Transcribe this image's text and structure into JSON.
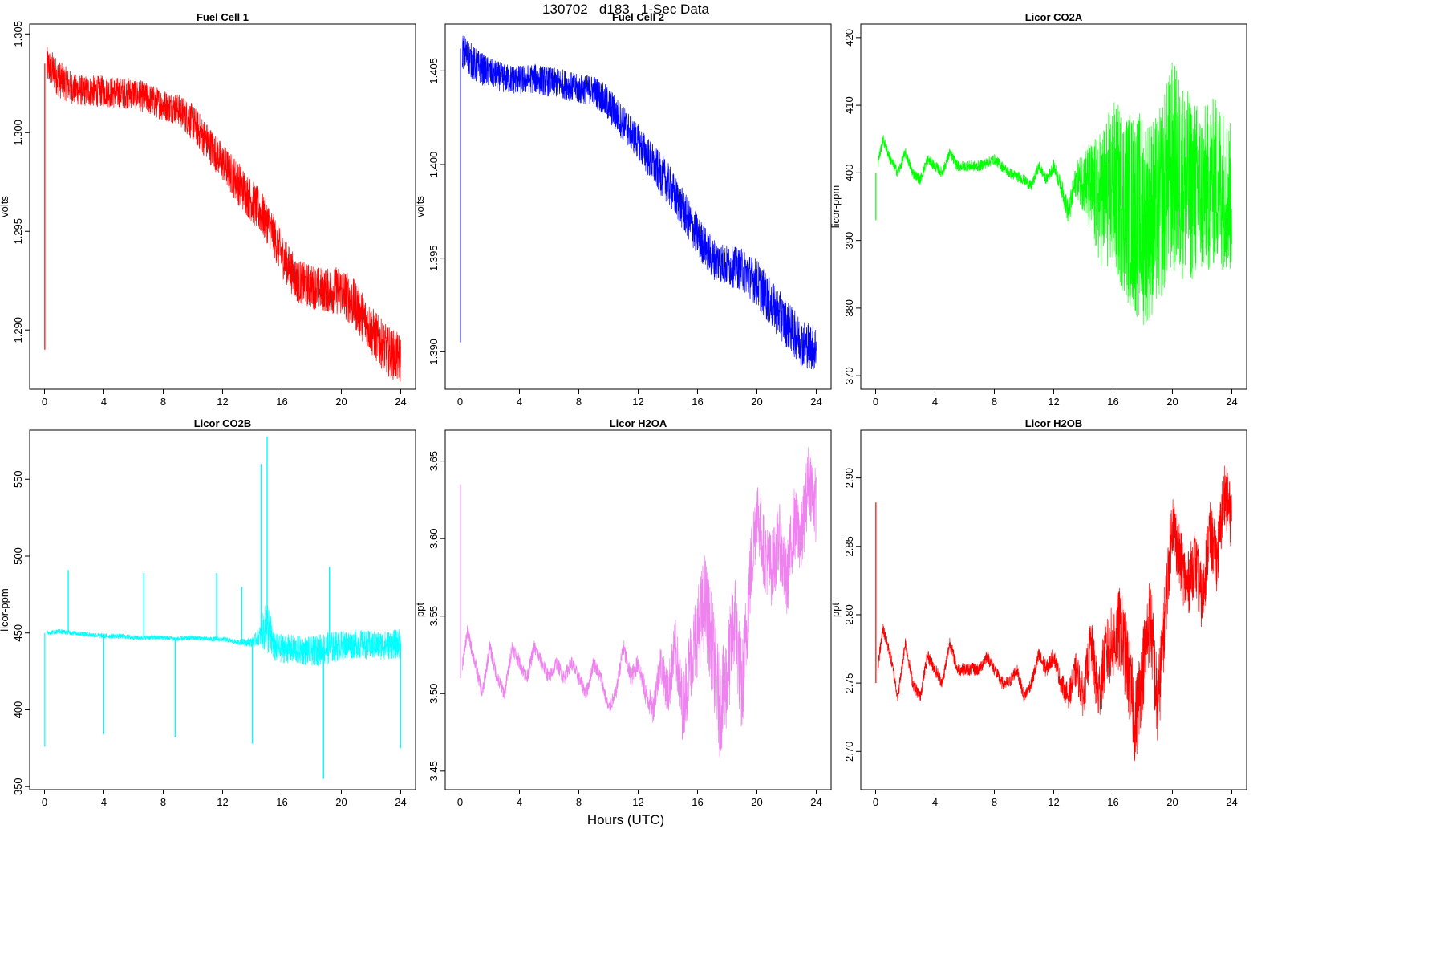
{
  "header": {
    "title": "130702   d183   1-Sec Data"
  },
  "xlabel": "Hours (UTC)",
  "chart_data": [
    {
      "type": "line",
      "title": "Fuel Cell 1",
      "ylabel": "volts",
      "color": "#ff0000",
      "xlim": [
        -1,
        25
      ],
      "ylim": [
        1.287,
        1.3055
      ],
      "xticks": [
        0,
        4,
        8,
        12,
        16,
        20,
        24
      ],
      "yticks": [
        1.29,
        1.295,
        1.3,
        1.305
      ],
      "ytick_labels": [
        "1.290",
        "1.295",
        "1.300",
        "1.305"
      ],
      "x": [
        0,
        0.5,
        1,
        2,
        3,
        4,
        5,
        6,
        7,
        8,
        9,
        10,
        11,
        12,
        13,
        14,
        15,
        16,
        17,
        18,
        19,
        20,
        21,
        22,
        23,
        24
      ],
      "y": [
        1.3035,
        1.3032,
        1.3027,
        1.3022,
        1.3021,
        1.3021,
        1.302,
        1.302,
        1.3017,
        1.3014,
        1.3012,
        1.3005,
        1.2995,
        1.2985,
        1.2975,
        1.2965,
        1.2955,
        1.2938,
        1.2925,
        1.2922,
        1.292,
        1.292,
        1.2912,
        1.29,
        1.289,
        1.2885
      ],
      "noise": [
        0.0006,
        0.0006,
        0.0006,
        0.0005,
        0.0005,
        0.0005,
        0.0005,
        0.0005,
        0.0005,
        0.0005,
        0.0005,
        0.0006,
        0.0006,
        0.0006,
        0.0007,
        0.0007,
        0.0007,
        0.0007,
        0.0007,
        0.0007,
        0.0007,
        0.0008,
        0.0008,
        0.0008,
        0.0008,
        0.0008
      ],
      "spike": {
        "x": 0.02,
        "y": 1.289
      }
    },
    {
      "type": "line",
      "title": "Fuel Cell 2",
      "ylabel": "volts",
      "color": "#0000ff",
      "xlim": [
        -1,
        25
      ],
      "ylim": [
        1.388,
        1.4075
      ],
      "xticks": [
        0,
        4,
        8,
        12,
        16,
        20,
        24
      ],
      "yticks": [
        1.39,
        1.395,
        1.4,
        1.405
      ],
      "ytick_labels": [
        "1.390",
        "1.395",
        "1.400",
        "1.405"
      ],
      "x": [
        0,
        0.5,
        1,
        2,
        3,
        4,
        5,
        6,
        7,
        8,
        9,
        10,
        11,
        12,
        13,
        14,
        15,
        16,
        17,
        18,
        19,
        20,
        21,
        22,
        23,
        24
      ],
      "y": [
        1.4062,
        1.4058,
        1.4053,
        1.4049,
        1.4046,
        1.4045,
        1.4046,
        1.4044,
        1.4043,
        1.404,
        1.404,
        1.4032,
        1.4022,
        1.4012,
        1.4,
        1.399,
        1.3976,
        1.3962,
        1.395,
        1.3946,
        1.3944,
        1.3937,
        1.3925,
        1.3915,
        1.3905,
        1.3902
      ],
      "noise": [
        0.0006,
        0.0006,
        0.0006,
        0.0005,
        0.0005,
        0.0005,
        0.0005,
        0.0005,
        0.0005,
        0.0005,
        0.0005,
        0.0006,
        0.0006,
        0.0006,
        0.0007,
        0.0007,
        0.0007,
        0.0007,
        0.0007,
        0.0007,
        0.0007,
        0.0008,
        0.0008,
        0.0008,
        0.0008,
        0.0008
      ],
      "spike": {
        "x": 0.02,
        "y": 1.3905
      }
    },
    {
      "type": "line",
      "title": "Licor CO2A",
      "ylabel": "licor-ppm",
      "color": "#00ff00",
      "xlim": [
        -1,
        25
      ],
      "ylim": [
        368,
        422
      ],
      "xticks": [
        0,
        4,
        8,
        12,
        16,
        20,
        24
      ],
      "yticks": [
        370,
        380,
        390,
        400,
        410,
        420
      ],
      "ytick_labels": [
        "370",
        "380",
        "390",
        "400",
        "410",
        "420"
      ],
      "x": [
        0,
        0.5,
        1,
        1.5,
        2,
        2.5,
        3,
        3.5,
        4,
        4.5,
        5,
        5.5,
        6,
        7,
        8,
        9,
        10,
        10.5,
        11,
        11.5,
        12,
        12.5,
        13,
        13.5,
        14,
        15,
        16,
        17,
        18,
        19,
        20,
        21,
        22,
        23,
        24
      ],
      "y": [
        400,
        405,
        402,
        400,
        403,
        400,
        399,
        402,
        401,
        400,
        403,
        401,
        401,
        401,
        402,
        400,
        399,
        398,
        401,
        399,
        401,
        398,
        394,
        399,
        399,
        396,
        398,
        395,
        393,
        394,
        401,
        398,
        397,
        399,
        396
      ],
      "noise": [
        0.5,
        0.5,
        0.5,
        0.5,
        0.5,
        0.5,
        0.5,
        0.5,
        0.5,
        0.5,
        0.5,
        0.5,
        0.5,
        0.5,
        0.5,
        0.5,
        0.5,
        0.5,
        0.5,
        0.5,
        0.6,
        0.8,
        1.2,
        1.5,
        3,
        6,
        8,
        9,
        10,
        9,
        10,
        9,
        8,
        8,
        7
      ],
      "spike": {
        "x": 0.02,
        "y": 393
      }
    },
    {
      "type": "line",
      "title": "Licor CO2B",
      "ylabel": "licor-ppm",
      "color": "#00ffff",
      "xlim": [
        -1,
        25
      ],
      "ylim": [
        348,
        582
      ],
      "xticks": [
        0,
        4,
        8,
        12,
        16,
        20,
        24
      ],
      "yticks": [
        350,
        400,
        450,
        500,
        550
      ],
      "ytick_labels": [
        "350",
        "400",
        "450",
        "500",
        "550"
      ],
      "x": [
        0,
        1,
        2,
        3,
        4,
        5,
        6,
        7,
        8,
        9,
        10,
        11,
        12,
        13,
        14,
        14.5,
        15,
        15.5,
        16,
        17,
        18,
        19,
        20,
        21,
        22,
        23,
        24
      ],
      "y": [
        450,
        451,
        450,
        449,
        448,
        448,
        447,
        447,
        447,
        446,
        447,
        446,
        446,
        444,
        444,
        448,
        455,
        440,
        440,
        439,
        438,
        440,
        442,
        443,
        442,
        442,
        443
      ],
      "noise": [
        1,
        1,
        1,
        1,
        1,
        1,
        1,
        1,
        1,
        1,
        1,
        1,
        1,
        1,
        2,
        4,
        12,
        6,
        6,
        6,
        6,
        7,
        6,
        6,
        6,
        6,
        6
      ],
      "spike": {
        "x": 0.02,
        "y": 376
      },
      "extra_spikes": [
        {
          "x": 4.0,
          "y": 384
        },
        {
          "x": 8.8,
          "y": 382
        },
        {
          "x": 14.0,
          "y": 378
        },
        {
          "x": 14.6,
          "y": 560
        },
        {
          "x": 15.0,
          "y": 578
        },
        {
          "x": 18.8,
          "y": 355
        },
        {
          "x": 19.2,
          "y": 493
        },
        {
          "x": 24.0,
          "y": 375
        },
        {
          "x": 1.6,
          "y": 491
        },
        {
          "x": 6.7,
          "y": 489
        },
        {
          "x": 11.6,
          "y": 489
        },
        {
          "x": 13.3,
          "y": 480
        }
      ]
    },
    {
      "type": "line",
      "title": "Licor H2OA",
      "ylabel": "ppt",
      "color": "#ee82ee",
      "xlim": [
        -1,
        25
      ],
      "ylim": [
        3.438,
        3.67
      ],
      "xticks": [
        0,
        4,
        8,
        12,
        16,
        20,
        24
      ],
      "yticks": [
        3.45,
        3.5,
        3.55,
        3.6,
        3.65
      ],
      "ytick_labels": [
        "3.45",
        "3.50",
        "3.55",
        "3.60",
        "3.65"
      ],
      "x": [
        0,
        0.5,
        1,
        1.5,
        2,
        2.5,
        3,
        3.5,
        4,
        4.5,
        5,
        5.5,
        6,
        6.5,
        7,
        7.5,
        8,
        8.5,
        9,
        9.5,
        10,
        10.5,
        11,
        11.5,
        12,
        12.5,
        13,
        13.5,
        14,
        14.5,
        15,
        15.5,
        16,
        16.5,
        17,
        17.5,
        18,
        18.5,
        19,
        19.5,
        20,
        20.5,
        21,
        21.5,
        22,
        22.5,
        23,
        23.5,
        24
      ],
      "y": [
        3.51,
        3.54,
        3.52,
        3.5,
        3.53,
        3.51,
        3.5,
        3.53,
        3.52,
        3.51,
        3.53,
        3.52,
        3.51,
        3.52,
        3.51,
        3.52,
        3.51,
        3.5,
        3.52,
        3.51,
        3.49,
        3.5,
        3.53,
        3.51,
        3.52,
        3.5,
        3.49,
        3.52,
        3.5,
        3.53,
        3.49,
        3.52,
        3.54,
        3.56,
        3.53,
        3.49,
        3.51,
        3.55,
        3.5,
        3.57,
        3.62,
        3.59,
        3.58,
        3.6,
        3.57,
        3.61,
        3.6,
        3.64,
        3.62
      ],
      "noise": [
        0.003,
        0.003,
        0.003,
        0.003,
        0.003,
        0.003,
        0.003,
        0.003,
        0.003,
        0.003,
        0.003,
        0.003,
        0.003,
        0.003,
        0.003,
        0.003,
        0.003,
        0.003,
        0.003,
        0.003,
        0.003,
        0.003,
        0.004,
        0.004,
        0.004,
        0.005,
        0.006,
        0.008,
        0.01,
        0.012,
        0.014,
        0.016,
        0.018,
        0.02,
        0.02,
        0.02,
        0.02,
        0.02,
        0.02,
        0.018,
        0.015,
        0.015,
        0.015,
        0.015,
        0.015,
        0.015,
        0.015,
        0.015,
        0.015
      ],
      "spike": {
        "x": 0.02,
        "y": 3.635
      }
    },
    {
      "type": "line",
      "title": "Licor H2OB",
      "ylabel": "ppt",
      "color": "#ff0000",
      "xlim": [
        -1,
        25
      ],
      "ylim": [
        2.672,
        2.935
      ],
      "xticks": [
        0,
        4,
        8,
        12,
        16,
        20,
        24
      ],
      "yticks": [
        2.7,
        2.75,
        2.8,
        2.85,
        2.9
      ],
      "ytick_labels": [
        "2.70",
        "2.75",
        "2.80",
        "2.85",
        "2.90"
      ],
      "x": [
        0,
        0.5,
        1,
        1.5,
        2,
        2.5,
        3,
        3.5,
        4,
        4.5,
        5,
        5.5,
        6,
        6.5,
        7,
        7.5,
        8,
        8.5,
        9,
        9.5,
        10,
        10.5,
        11,
        11.5,
        12,
        12.5,
        13,
        13.5,
        14,
        14.5,
        15,
        15.5,
        16,
        16.5,
        17,
        17.5,
        18,
        18.5,
        19,
        19.5,
        20,
        20.5,
        21,
        21.5,
        22,
        22.5,
        23,
        23.5,
        24
      ],
      "y": [
        2.75,
        2.79,
        2.77,
        2.74,
        2.78,
        2.75,
        2.74,
        2.77,
        2.76,
        2.75,
        2.78,
        2.76,
        2.76,
        2.76,
        2.76,
        2.77,
        2.76,
        2.75,
        2.75,
        2.76,
        2.74,
        2.75,
        2.77,
        2.76,
        2.77,
        2.75,
        2.74,
        2.76,
        2.74,
        2.78,
        2.74,
        2.77,
        2.78,
        2.79,
        2.76,
        2.72,
        2.76,
        2.8,
        2.73,
        2.8,
        2.87,
        2.84,
        2.82,
        2.84,
        2.81,
        2.86,
        2.84,
        2.89,
        2.87
      ],
      "noise": [
        0.003,
        0.003,
        0.003,
        0.003,
        0.003,
        0.003,
        0.003,
        0.003,
        0.003,
        0.003,
        0.003,
        0.003,
        0.003,
        0.003,
        0.003,
        0.003,
        0.003,
        0.003,
        0.003,
        0.003,
        0.003,
        0.003,
        0.004,
        0.004,
        0.004,
        0.005,
        0.006,
        0.008,
        0.01,
        0.012,
        0.014,
        0.016,
        0.018,
        0.02,
        0.02,
        0.02,
        0.02,
        0.02,
        0.02,
        0.018,
        0.015,
        0.015,
        0.015,
        0.015,
        0.015,
        0.015,
        0.015,
        0.015,
        0.015
      ],
      "spike": {
        "x": 0.02,
        "y": 2.882
      }
    }
  ]
}
